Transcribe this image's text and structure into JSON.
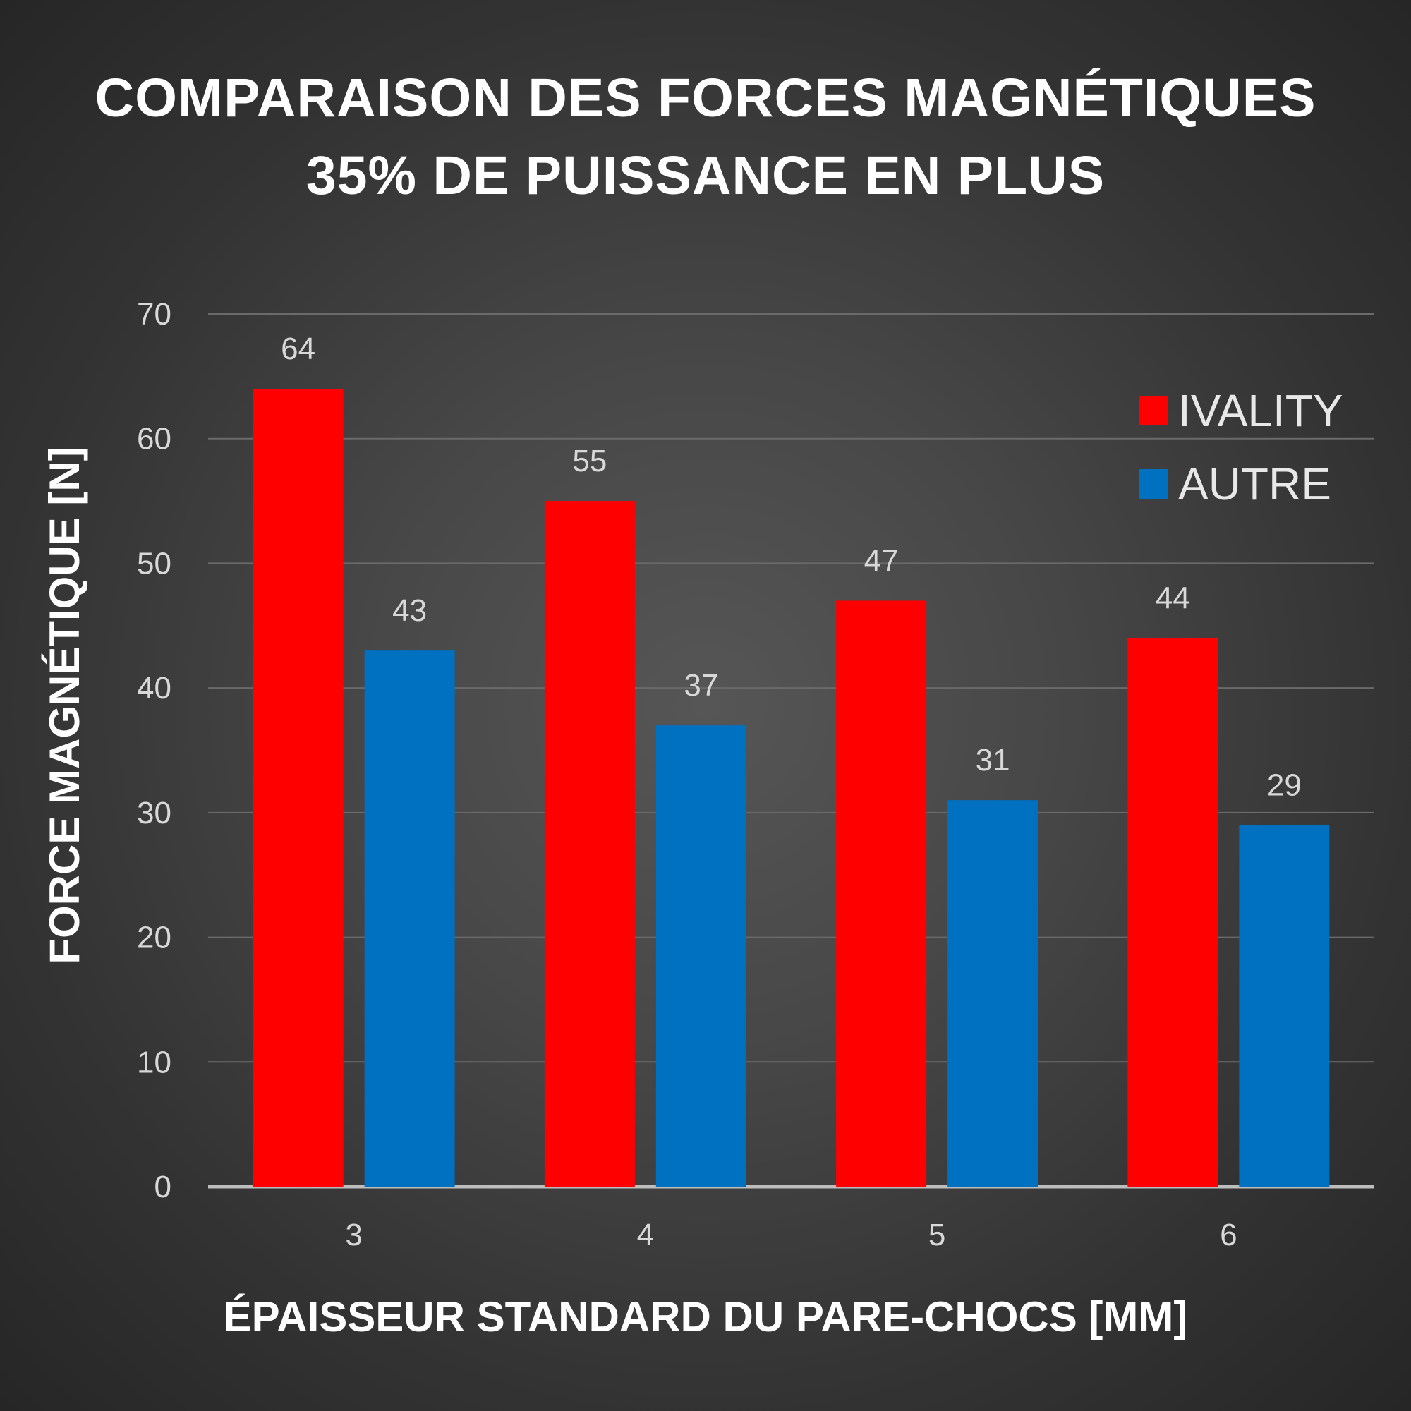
{
  "title": {
    "line1": "COMPARAISON DES FORCES MAGNÉTIQUES",
    "line2": "35% DE PUISSANCE EN PLUS"
  },
  "chart_data": {
    "type": "bar",
    "categories": [
      "3",
      "4",
      "5",
      "6"
    ],
    "series": [
      {
        "name": "IVALITY",
        "values": [
          64,
          55,
          47,
          44
        ],
        "color": "#ff0000"
      },
      {
        "name": "AUTRE",
        "values": [
          43,
          37,
          31,
          29
        ],
        "color": "#0070c0"
      }
    ],
    "xlabel": "ÉPAISSEUR STANDARD DU PARE-CHOCS [MM]",
    "ylabel": "FORCE MAGNÉTIQUE [N]",
    "ylim": [
      0,
      70
    ],
    "yticks": [
      0,
      10,
      20,
      30,
      40,
      50,
      60,
      70
    ],
    "grid": true,
    "legend_position": "top-right",
    "data_labels": true
  }
}
